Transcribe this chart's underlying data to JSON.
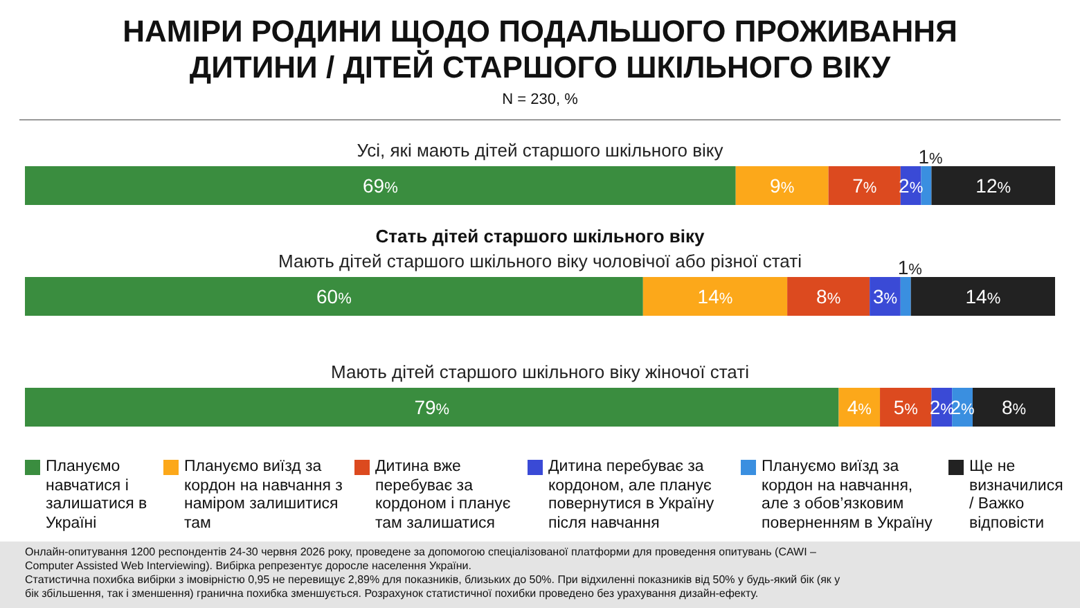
{
  "chart_data": {
    "type": "bar",
    "orientation": "horizontal",
    "stacked": true,
    "title": "НАМІРИ РОДИНИ ЩОДО ПОДАЛЬШОГО ПРОЖИВАННЯ ДИТИНИ / ДІТЕЙ СТАРШОГО ШКІЛЬНОГО ВІКУ",
    "subtitle": "N = 230, %",
    "categories": [
      "Усі, які мають дітей старшого шкільного віку",
      "Мають дітей старшого шкільного віку чоловічої або різної статі",
      "Мають дітей старшого шкільного віку жіночої статі"
    ],
    "xlim": [
      0,
      100
    ],
    "legend": "bottom",
    "series": [
      {
        "name": "Плануємо навчатися і залишатися в Україні",
        "color": "#3a8d3f",
        "values": [
          69,
          60,
          79
        ],
        "value_labels": [
          "69%",
          "60%",
          "79%"
        ]
      },
      {
        "name": "Плануємо виїзд за кордон на навчання з наміром залишитися там",
        "color": "#fca81a",
        "values": [
          9,
          14,
          4
        ],
        "value_labels": [
          "9%",
          "14%",
          "4%"
        ]
      },
      {
        "name": "Дитина вже перебуває за кордоном і планує там залишатися",
        "color": "#dc4a1f",
        "values": [
          7,
          8,
          5
        ],
        "value_labels": [
          "7%",
          "8%",
          "5%"
        ]
      },
      {
        "name": "Дитина перебуває за кордоном, але планує повернутися в Україну після навчання",
        "color": "#3a4ad6",
        "values": [
          2,
          3,
          2
        ],
        "value_labels": [
          "2%",
          "3%",
          "2%"
        ]
      },
      {
        "name": "Плануємо виїзд за кордон на навчання, але з обов’язковим поверненням в Україну",
        "color": "#3a8fe0",
        "values": [
          1,
          1,
          2
        ],
        "value_labels": [
          "1%",
          "1%",
          "2%"
        ]
      },
      {
        "name": "Ще не визначилися / Важко відповісти",
        "color": "#222222",
        "values": [
          12,
          14,
          8
        ],
        "value_labels": [
          "12%",
          "14%",
          "8%"
        ]
      }
    ],
    "annotations": [
      "Стать дітей старшого шкільного віку",
      "Онлайн-опитування 1200 респондентів 24-30 червня 2026 року, проведене за допомогою спеціалізованої платформи для проведення опитувань (CAWI – Computer Assisted Web Interviewing). Вибірка репрезентує доросле населення України.",
      "Статистична похибка вибірки з імовірністю 0,95 не перевищує 2,89% для показників, близьких до 50%. При відхиленні показників від 50% у будь-який бік (як у бік збільшення, так і зменшення) гранична похибка зменшується. Розрахунок статистичної похибки проведено без урахування дизайн-ефекту."
    ]
  }
}
